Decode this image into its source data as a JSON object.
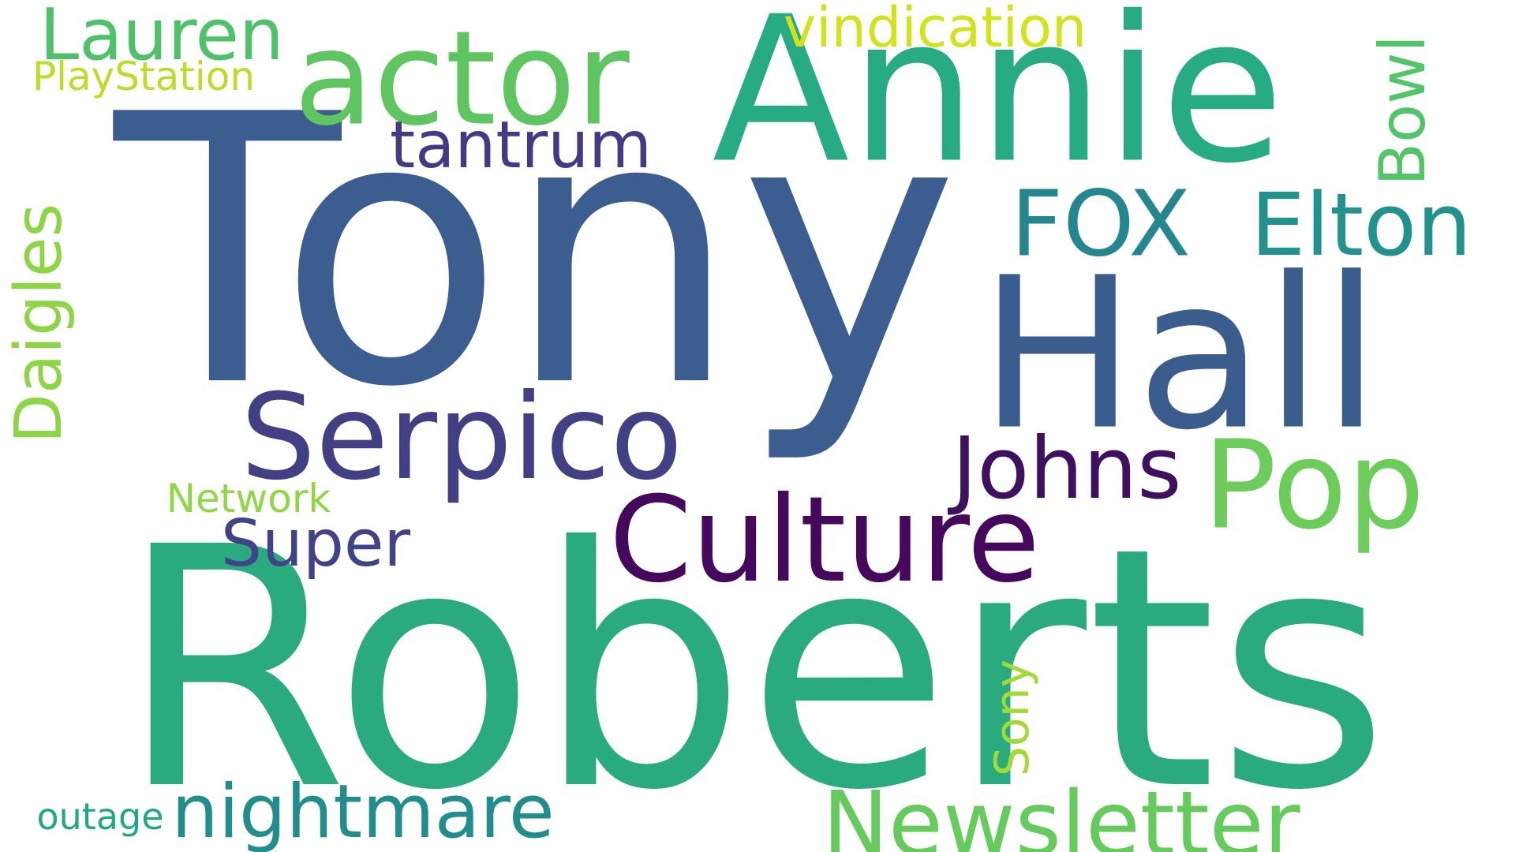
{
  "words": [
    {
      "key": "tony",
      "text": "Tony",
      "color": "#3b5d8f",
      "vertical": false
    },
    {
      "key": "roberts",
      "text": "Roberts",
      "color": "#2aab7f",
      "vertical": false
    },
    {
      "key": "annie",
      "text": "Annie",
      "color": "#27ab82",
      "vertical": false
    },
    {
      "key": "hall",
      "text": "Hall",
      "color": "#3a5d8e",
      "vertical": false
    },
    {
      "key": "actor",
      "text": "actor",
      "color": "#5fc560",
      "vertical": false
    },
    {
      "key": "serpico",
      "text": "Serpico",
      "color": "#433f85",
      "vertical": false
    },
    {
      "key": "culture",
      "text": "Culture",
      "color": "#46085c",
      "vertical": false
    },
    {
      "key": "pop",
      "text": "Pop",
      "color": "#6ccd5a",
      "vertical": false
    },
    {
      "key": "fox",
      "text": "FOX",
      "color": "#24868e",
      "vertical": false
    },
    {
      "key": "elton",
      "text": "Elton",
      "color": "#21928c",
      "vertical": false
    },
    {
      "key": "johns",
      "text": "Johns",
      "color": "#3f0f60",
      "vertical": false
    },
    {
      "key": "newsletter",
      "text": "Newsletter",
      "color": "#66cb5d",
      "vertical": false
    },
    {
      "key": "nightmare",
      "text": "nightmare",
      "color": "#218e8d",
      "vertical": false
    },
    {
      "key": "lauren",
      "text": "Lauren",
      "color": "#4fc16b",
      "vertical": false
    },
    {
      "key": "tantrum",
      "text": "tantrum",
      "color": "#443a83",
      "vertical": false
    },
    {
      "key": "vindication",
      "text": "vindication",
      "color": "#d2e21b",
      "vertical": false
    },
    {
      "key": "super",
      "text": "Super",
      "color": "#404387",
      "vertical": false
    },
    {
      "key": "bowl",
      "text": "Bowl",
      "color": "#52c569",
      "vertical": true
    },
    {
      "key": "daigles",
      "text": "Daigles",
      "color": "#8dd544",
      "vertical": true
    },
    {
      "key": "sony",
      "text": "Sony",
      "color": "#a2da37",
      "vertical": true
    },
    {
      "key": "playstation",
      "text": "PlayStation",
      "color": "#bade28",
      "vertical": false
    },
    {
      "key": "network",
      "text": "Network",
      "color": "#8fd744",
      "vertical": false
    },
    {
      "key": "outage",
      "text": "outage",
      "color": "#22a785",
      "vertical": false
    }
  ]
}
